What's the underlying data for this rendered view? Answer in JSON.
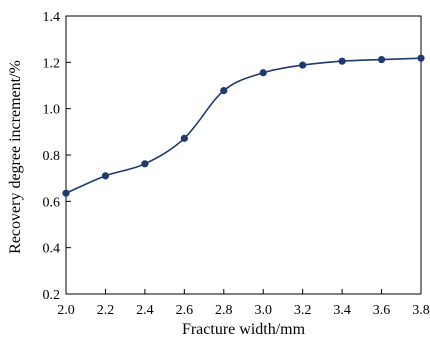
{
  "chart_data": {
    "type": "line",
    "title": "",
    "xlabel": "Fracture width/mm",
    "ylabel": "Recovery degree increment/%",
    "xlim": [
      2.0,
      3.8
    ],
    "ylim": [
      0.2,
      1.4
    ],
    "x_ticks": [
      "2.0",
      "2.2",
      "2.4",
      "2.6",
      "2.8",
      "3.0",
      "3.2",
      "3.4",
      "3.6",
      "3.8"
    ],
    "y_ticks": [
      "0.2",
      "0.4",
      "0.6",
      "0.8",
      "1.0",
      "1.2",
      "1.4"
    ],
    "grid": false,
    "legend": "none",
    "line_color": "#1f3a6e",
    "series": [
      {
        "x": [
          2.0,
          2.2,
          2.4,
          2.6,
          2.8,
          3.0,
          3.2,
          3.4,
          3.6,
          3.8
        ],
        "y": [
          0.635,
          0.71,
          0.762,
          0.872,
          1.078,
          1.155,
          1.188,
          1.205,
          1.212,
          1.218
        ]
      }
    ]
  }
}
